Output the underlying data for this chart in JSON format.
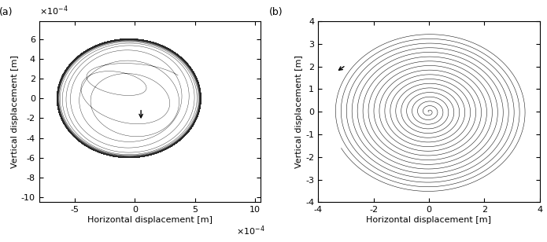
{
  "fig_width": 6.95,
  "fig_height": 3.08,
  "dpi": 100,
  "panel_a": {
    "label": "(a)",
    "xlabel": "Horizontal displacement [m]",
    "ylabel": "Vertical displacement [m]",
    "xlim": [
      -0.0008,
      0.00105
    ],
    "ylim": [
      -0.00105,
      0.00078
    ],
    "xticks": [
      -0.0005,
      0,
      0.0005,
      0.001
    ],
    "yticks": [
      -0.001,
      -0.0008,
      -0.0006,
      -0.0004,
      -0.0002,
      0,
      0.0002,
      0.0004,
      0.0006
    ],
    "xticklabels": [
      "-5",
      "0",
      "5",
      "10"
    ],
    "yticklabels": [
      "-10",
      "-8",
      "-6",
      "-4",
      "-2",
      "0",
      "2",
      "4",
      "6"
    ]
  },
  "panel_b": {
    "label": "(b)",
    "xlabel": "Horizontal displacement [m]",
    "ylabel": "Vertical displacement [m]",
    "xlim": [
      -4,
      4
    ],
    "ylim": [
      -4,
      4
    ],
    "xticks": [
      -4,
      -2,
      0,
      2,
      4
    ],
    "yticks": [
      -4,
      -3,
      -2,
      -1,
      0,
      1,
      2,
      3,
      4
    ],
    "xticklabels": [
      "-4",
      "-2",
      "0",
      "2",
      "4"
    ],
    "yticklabels": [
      "-4",
      "-3",
      "-2",
      "-1",
      "0",
      "1",
      "2",
      "3",
      "4"
    ]
  },
  "line_color": "#000000",
  "bg_color": "#ffffff",
  "fontsize_label": 8,
  "fontsize_tick": 8,
  "fontsize_panel": 9
}
